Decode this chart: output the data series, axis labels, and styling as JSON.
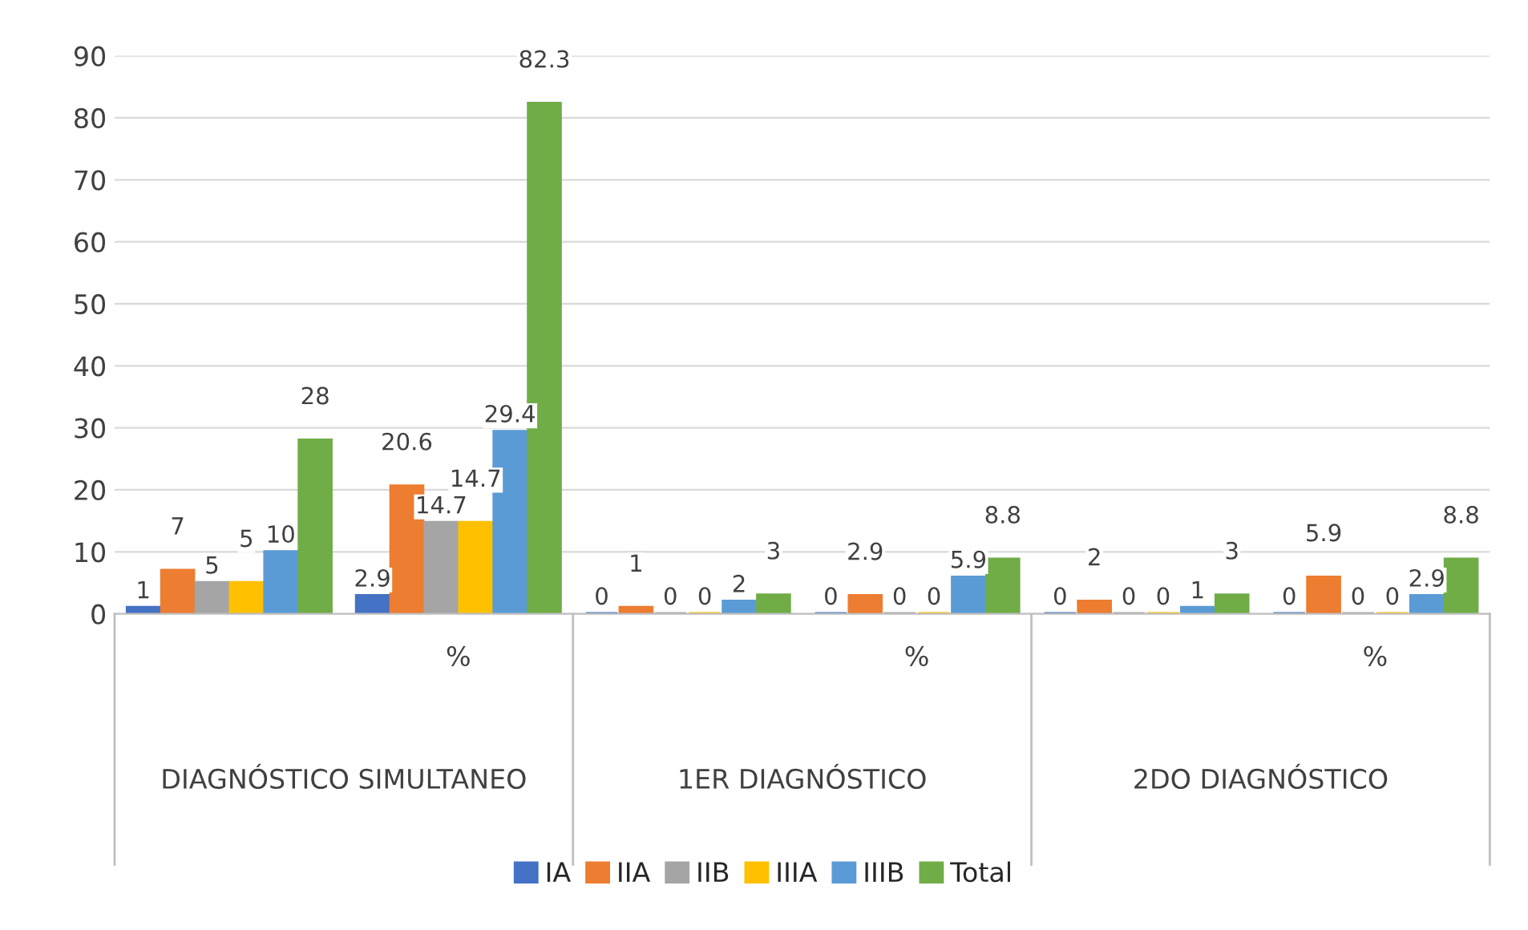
{
  "chart_data": {
    "type": "bar",
    "categories": [
      null,
      "%",
      null,
      "%",
      null,
      "%"
    ],
    "series": [
      {
        "name": "IA",
        "color": "#4472c4",
        "values": [
          1,
          2.9,
          0,
          0,
          0,
          0
        ]
      },
      {
        "name": "IIA",
        "color": "#ed7d31",
        "values": [
          7,
          20.6,
          1,
          2.9,
          2,
          5.9
        ]
      },
      {
        "name": "IIB",
        "color": "#a5a5a5",
        "values": [
          5,
          14.7,
          0,
          0,
          0,
          0
        ]
      },
      {
        "name": "IIIA",
        "color": "#ffc000",
        "values": [
          5,
          14.7,
          0,
          0,
          0,
          0
        ]
      },
      {
        "name": "IIIB",
        "color": "#5b9bd5",
        "values": [
          10,
          29.4,
          2,
          5.9,
          1,
          2.9
        ]
      },
      {
        "name": "Total",
        "color": "#70ad47",
        "values": [
          28,
          82.3,
          3,
          8.8,
          3,
          8.8
        ]
      }
    ],
    "annotations": [
      "DIAGNÓSTICO SIMULTANEO",
      "1ER DIAGNÓSTICO",
      "2DO DIAGNÓSTICO"
    ],
    "ylim": [
      0,
      90
    ],
    "yticks": [
      0,
      10,
      20,
      30,
      40,
      50,
      60,
      70,
      80,
      90
    ],
    "grid": "y",
    "legend": "bottom",
    "data_labels": true
  }
}
